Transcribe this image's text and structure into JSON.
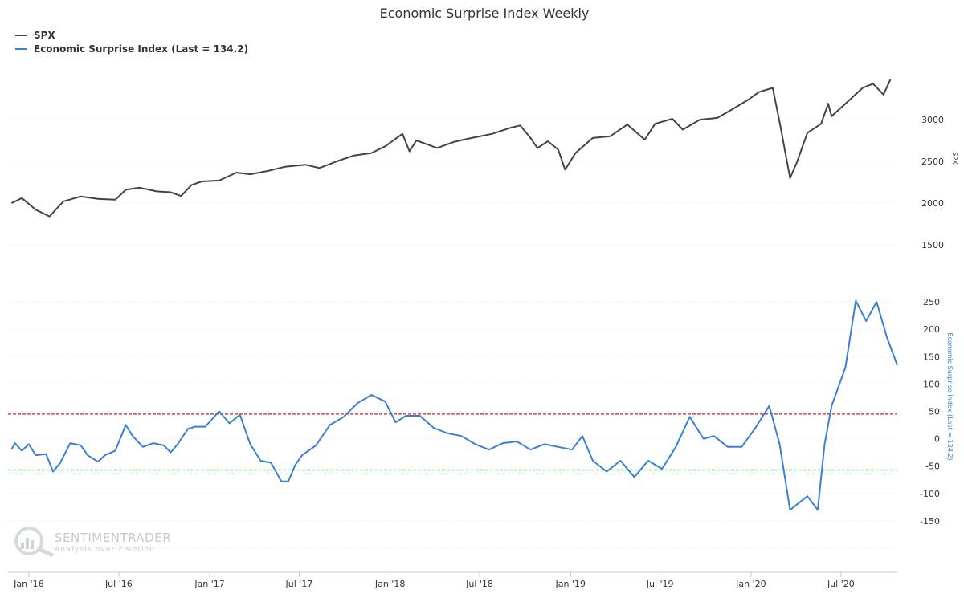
{
  "title": "Economic Surprise Index Weekly",
  "legend": [
    {
      "label": "SPX",
      "color": "#444444"
    },
    {
      "label": "Economic Surprise Index (Last = 134.2)",
      "color": "#3a80d0"
    }
  ],
  "watermark": {
    "title": "SENTIMENTRADER",
    "subtitle": "Analysis over Emotion"
  },
  "chart_data": [
    {
      "type": "line",
      "name": "SPX",
      "ylabel": "SPX",
      "ylim": [
        1500,
        3500
      ],
      "yticks": [
        1500,
        2000,
        2500,
        3000
      ],
      "color": "#444444",
      "x": [
        "2015-11-27",
        "2015-12-18",
        "2016-01-15",
        "2016-02-12",
        "2016-03-11",
        "2016-04-15",
        "2016-05-20",
        "2016-06-24",
        "2016-07-15",
        "2016-08-12",
        "2016-09-16",
        "2016-10-14",
        "2016-11-04",
        "2016-11-25",
        "2016-12-16",
        "2017-01-20",
        "2017-02-24",
        "2017-03-24",
        "2017-04-28",
        "2017-06-02",
        "2017-07-14",
        "2017-08-11",
        "2017-09-15",
        "2017-10-20",
        "2017-11-24",
        "2017-12-22",
        "2018-01-26",
        "2018-02-09",
        "2018-02-23",
        "2018-03-09",
        "2018-04-06",
        "2018-05-11",
        "2018-06-15",
        "2018-07-27",
        "2018-08-31",
        "2018-09-21",
        "2018-10-12",
        "2018-10-26",
        "2018-11-16",
        "2018-12-07",
        "2018-12-21",
        "2019-01-11",
        "2019-02-15",
        "2019-03-22",
        "2019-04-26",
        "2019-05-31",
        "2019-06-21",
        "2019-07-26",
        "2019-08-16",
        "2019-09-20",
        "2019-10-25",
        "2019-11-29",
        "2019-12-27",
        "2020-01-17",
        "2020-02-14",
        "2020-02-28",
        "2020-03-20",
        "2020-04-03",
        "2020-04-24",
        "2020-05-22",
        "2020-06-05",
        "2020-06-12",
        "2020-07-10",
        "2020-08-14",
        "2020-09-04",
        "2020-09-25",
        "2020-10-09"
      ],
      "y": [
        2000,
        2060,
        1920,
        1840,
        2020,
        2080,
        2050,
        2040,
        2160,
        2185,
        2140,
        2130,
        2085,
        2215,
        2260,
        2270,
        2365,
        2345,
        2385,
        2435,
        2460,
        2420,
        2500,
        2570,
        2600,
        2680,
        2830,
        2620,
        2750,
        2720,
        2660,
        2735,
        2780,
        2830,
        2900,
        2930,
        2780,
        2660,
        2740,
        2640,
        2400,
        2600,
        2780,
        2800,
        2940,
        2760,
        2950,
        3010,
        2880,
        3000,
        3020,
        3140,
        3240,
        3330,
        3380,
        2970,
        2300,
        2490,
        2840,
        2950,
        3190,
        3040,
        3190,
        3380,
        3430,
        3300,
        3480
      ]
    },
    {
      "type": "line",
      "name": "Economic Surprise Index (Last = 134.2)",
      "ylabel": "Economic Surprise Index (Last = 134.2)",
      "ylim": [
        -200,
        300
      ],
      "yticks": [
        -150,
        -100,
        -50,
        0,
        50,
        100,
        150,
        200,
        250
      ],
      "color": "#3a80d0",
      "reference_lines": [
        {
          "value": 45,
          "color": "#cc2222"
        },
        {
          "value": -57,
          "color": "#2a8a2a"
        }
      ],
      "x": [
        "2015-11-27",
        "2015-12-04",
        "2015-12-18",
        "2016-01-01",
        "2016-01-15",
        "2016-02-05",
        "2016-02-19",
        "2016-03-04",
        "2016-03-25",
        "2016-04-15",
        "2016-04-29",
        "2016-05-20",
        "2016-06-03",
        "2016-06-24",
        "2016-07-15",
        "2016-07-29",
        "2016-08-19",
        "2016-09-09",
        "2016-09-30",
        "2016-10-14",
        "2016-10-28",
        "2016-11-18",
        "2016-12-02",
        "2016-12-23",
        "2017-01-20",
        "2017-02-10",
        "2017-03-03",
        "2017-03-24",
        "2017-04-14",
        "2017-05-05",
        "2017-05-26",
        "2017-06-09",
        "2017-06-23",
        "2017-07-07",
        "2017-08-04",
        "2017-09-01",
        "2017-09-29",
        "2017-10-27",
        "2017-11-24",
        "2017-12-22",
        "2018-01-12",
        "2018-02-02",
        "2018-03-02",
        "2018-03-30",
        "2018-04-27",
        "2018-05-25",
        "2018-06-22",
        "2018-07-20",
        "2018-08-17",
        "2018-09-14",
        "2018-10-12",
        "2018-11-09",
        "2018-12-07",
        "2019-01-04",
        "2019-01-25",
        "2019-02-15",
        "2019-03-15",
        "2019-04-12",
        "2019-05-10",
        "2019-06-07",
        "2019-07-05",
        "2019-08-02",
        "2019-08-30",
        "2019-09-27",
        "2019-10-18",
        "2019-11-15",
        "2019-12-13",
        "2020-01-10",
        "2020-02-07",
        "2020-02-28",
        "2020-03-20",
        "2020-04-24",
        "2020-05-15",
        "2020-05-29",
        "2020-06-12",
        "2020-07-10",
        "2020-07-31",
        "2020-08-21",
        "2020-09-11",
        "2020-10-02",
        "2020-10-23"
      ],
      "y": [
        -20,
        -8,
        -22,
        -10,
        -30,
        -28,
        -60,
        -45,
        -8,
        -12,
        -30,
        -42,
        -30,
        -22,
        25,
        5,
        -15,
        -8,
        -12,
        -25,
        -10,
        18,
        22,
        22,
        50,
        28,
        44,
        -10,
        -40,
        -44,
        -78,
        -78,
        -48,
        -30,
        -12,
        25,
        40,
        65,
        80,
        68,
        30,
        42,
        42,
        20,
        10,
        5,
        -10,
        -20,
        -8,
        -5,
        -20,
        -10,
        -15,
        -20,
        5,
        -40,
        -60,
        -40,
        -70,
        -40,
        -55,
        -15,
        40,
        0,
        5,
        -15,
        -15,
        20,
        60,
        -10,
        -130,
        -105,
        -130,
        -10,
        60,
        130,
        252,
        215,
        250,
        185,
        134.2
      ]
    }
  ],
  "x_axis": {
    "ticks": [
      "Jan '16",
      "Jul '16",
      "Jan '17",
      "Jul '17",
      "Jan '18",
      "Jul '18",
      "Jan '19",
      "Jul '19",
      "Jan '20",
      "Jul '20"
    ],
    "tick_dates": [
      "2016-01-01",
      "2016-07-01",
      "2017-01-01",
      "2017-07-01",
      "2018-01-01",
      "2018-07-01",
      "2019-01-01",
      "2019-07-01",
      "2020-01-01",
      "2020-07-01"
    ],
    "range": [
      "2015-11-20",
      "2020-10-23"
    ]
  }
}
